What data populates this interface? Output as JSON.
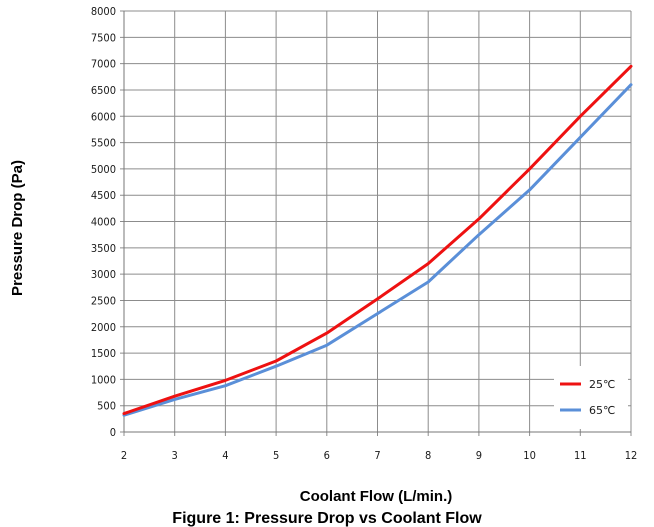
{
  "chart_data": {
    "type": "line",
    "title": "",
    "xlabel": "Coolant Flow (L/min.)",
    "ylabel": "Pressure Drop (Pa)",
    "xlim": [
      2,
      12
    ],
    "ylim": [
      0,
      8000
    ],
    "x_ticks": [
      "2",
      "3",
      "4",
      "5",
      "6",
      "7",
      "8",
      "9",
      "10",
      "11",
      "12"
    ],
    "y_ticks": [
      "0",
      "500",
      "1000",
      "1500",
      "2000",
      "2500",
      "3000",
      "3500",
      "4000",
      "4500",
      "5000",
      "5500",
      "6000",
      "6500",
      "7000",
      "7500",
      "8000"
    ],
    "grid": true,
    "legend_position": "bottom-right",
    "series": [
      {
        "name": "25℃",
        "color": "#ee1111",
        "x": [
          2,
          3,
          4,
          5,
          6,
          7,
          8,
          9,
          10,
          11,
          12
        ],
        "y": [
          350,
          680,
          980,
          1350,
          1880,
          2530,
          3200,
          4050,
          5000,
          6000,
          6950
        ]
      },
      {
        "name": "65℃",
        "color": "#5a8fd8",
        "x": [
          2,
          3,
          4,
          5,
          6,
          7,
          8,
          9,
          10,
          11,
          12
        ],
        "y": [
          320,
          620,
          880,
          1250,
          1650,
          2250,
          2850,
          3750,
          4600,
          5600,
          6600
        ]
      }
    ]
  },
  "caption": "Figure 1: Pressure Drop vs Coolant Flow"
}
